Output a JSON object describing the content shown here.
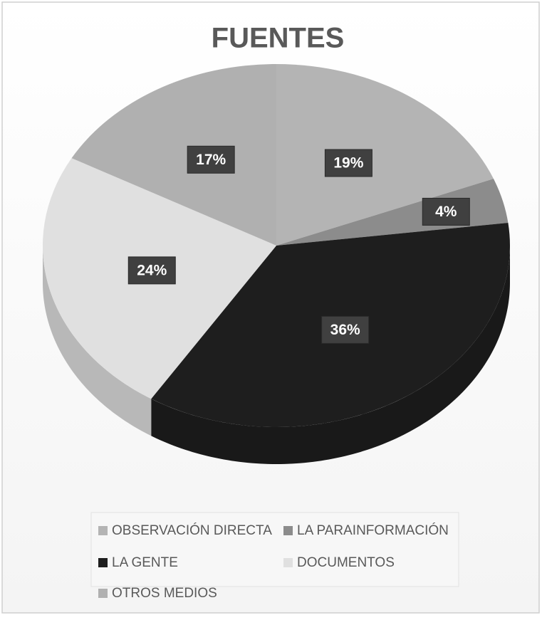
{
  "chart_data": {
    "type": "pie",
    "title": "FUENTES",
    "categories": [
      "OBSERVACIÓN DIRECTA",
      "LA PARAINFORMACIÓN",
      "LA GENTE",
      "DOCUMENTOS",
      "OTROS MEDIOS"
    ],
    "values": [
      19,
      4,
      36,
      24,
      17
    ],
    "value_labels": [
      "19%",
      "4%",
      "36%",
      "24%",
      "17%"
    ],
    "colors": [
      "#b4b4b4",
      "#8c8c8c",
      "#1e1e1e",
      "#e0e0e0",
      "#b0b0b0"
    ],
    "legend": "bottom"
  }
}
